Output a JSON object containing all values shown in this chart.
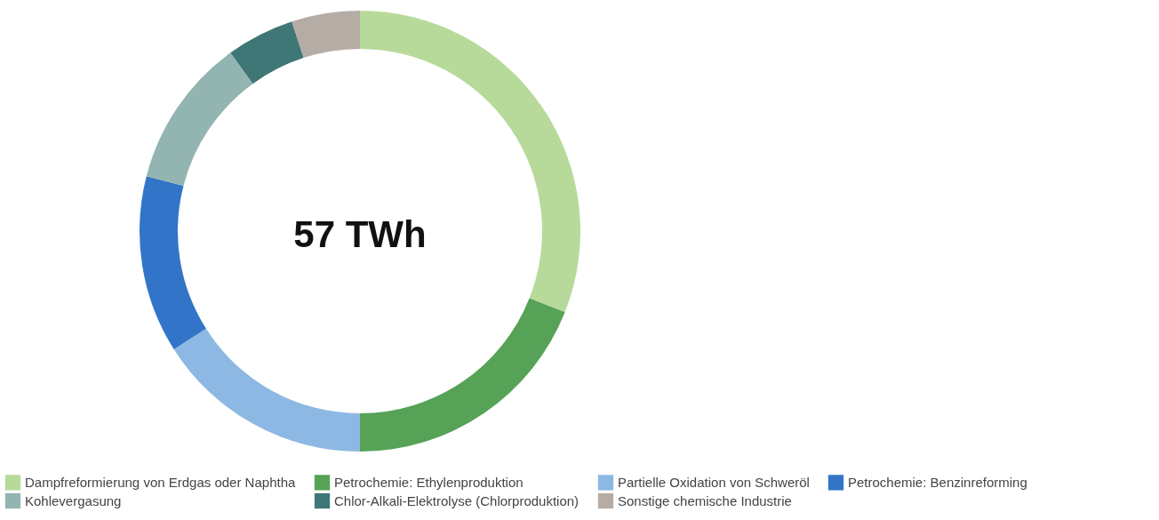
{
  "chart_data": {
    "type": "donut",
    "categories": [
      "Dampfreformierung von Erdgas oder Naphtha",
      "Petrochemie: Ethylenproduktion",
      "Partielle Oxidation von Schweröl",
      "Petrochemie: Benzinreforming",
      "Kohlevergasung",
      "Chlor-Alkali-Elektrolyse (Chlorproduktion)",
      "Sonstige chemische Industrie"
    ],
    "values": [
      31,
      19,
      16,
      13,
      11,
      5,
      5
    ],
    "colors": [
      "#b7da9b",
      "#56a257",
      "#8db8e3",
      "#3275c8",
      "#93b5b1",
      "#3f7776",
      "#b6aca6"
    ],
    "annotations": [
      "57 TWh"
    ],
    "legend": "bottom"
  }
}
